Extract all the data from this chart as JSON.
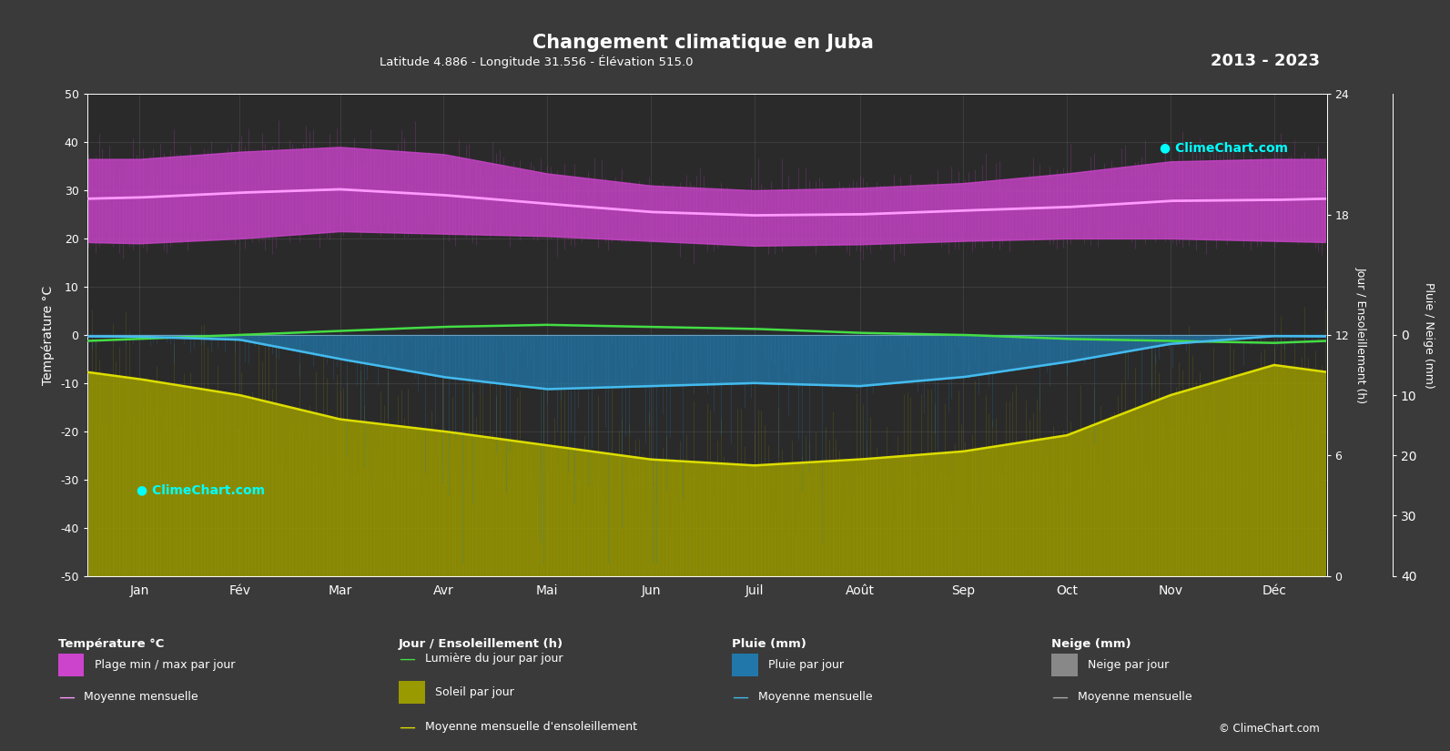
{
  "title": "Changement climatique en Juba",
  "subtitle": "Latitude 4.886 - Longitude 31.556 - Élévation 515.0",
  "year_range": "2013 - 2023",
  "background_color": "#3a3a3a",
  "plot_bg_color": "#2a2a2a",
  "months": [
    "Jan",
    "Fév",
    "Mar",
    "Avr",
    "Mai",
    "Jun",
    "Juil",
    "Août",
    "Sep",
    "Oct",
    "Nov",
    "Déc"
  ],
  "temp_ylim": [
    -50,
    50
  ],
  "temp_mean_monthly": [
    28.5,
    29.5,
    30.2,
    29.0,
    27.2,
    25.5,
    24.8,
    25.0,
    25.8,
    26.5,
    27.8,
    28.0
  ],
  "temp_max_monthly": [
    36.5,
    38.0,
    39.0,
    37.5,
    33.5,
    31.0,
    30.0,
    30.5,
    31.5,
    33.5,
    36.0,
    36.5
  ],
  "temp_min_monthly": [
    19.0,
    20.0,
    21.5,
    21.0,
    20.5,
    19.5,
    18.5,
    18.8,
    19.5,
    20.0,
    20.0,
    19.5
  ],
  "rain_mean_monthly": [
    0.3,
    0.8,
    4.0,
    7.0,
    9.0,
    8.5,
    8.0,
    8.5,
    7.0,
    4.5,
    1.5,
    0.2
  ],
  "sunshine_mean_monthly": [
    9.8,
    9.0,
    7.8,
    7.2,
    6.5,
    5.8,
    5.5,
    5.8,
    6.2,
    7.0,
    9.0,
    10.5
  ],
  "daylight_mean_monthly": [
    11.8,
    12.0,
    12.2,
    12.4,
    12.5,
    12.4,
    12.3,
    12.1,
    12.0,
    11.8,
    11.7,
    11.6
  ],
  "color_temp_fill": "#cc44cc",
  "color_temp_mean": "#ff99ff",
  "color_daylight": "#44dd44",
  "color_sunshine_fill": "#999900",
  "color_sunshine_mean": "#dddd00",
  "color_rain_fill": "#2277aa",
  "color_rain_mean": "#44bbee",
  "color_snow_fill": "#888888",
  "color_snow_mean": "#aaaaaa",
  "left_ylabel": "Température °C",
  "right_ylabel1": "Jour / Ensoleillement (h)",
  "right_ylabel2": "Pluie / Neige (mm)",
  "sun_right_ticks": [
    0,
    6,
    12,
    18,
    24
  ],
  "rain_right_ticks": [
    0,
    10,
    20,
    30,
    40
  ],
  "temp_left_ticks": [
    -50,
    -40,
    -30,
    -20,
    -10,
    0,
    10,
    20,
    30,
    40,
    50
  ]
}
